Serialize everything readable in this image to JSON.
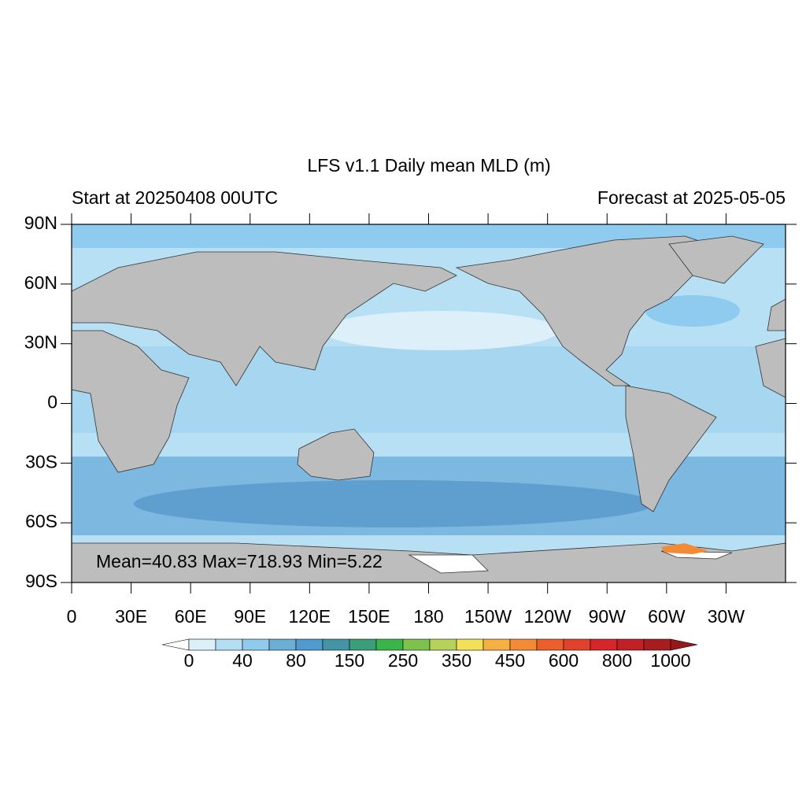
{
  "chart_data": {
    "type": "map",
    "title": "LFS v1.1 Daily mean MLD (m)",
    "subtitle_left": "Start at 20250408 00UTC",
    "subtitle_right": "Forecast at 2025-05-05",
    "annotation": "Mean=40.83  Max=718.93  Min=5.22",
    "xlim": [
      0,
      360
    ],
    "xticks": [
      0,
      {
        "value": 30,
        "label": "30E"
      },
      {
        "value": 60,
        "label": "60E"
      },
      {
        "value": 90,
        "label": "90E"
      },
      {
        "value": 120,
        "label": "120E"
      },
      {
        "value": 150,
        "label": "150E"
      },
      {
        "value": 180,
        "label": "180"
      },
      {
        "value": 210,
        "label": "150W"
      },
      {
        "value": 240,
        "label": "120W"
      },
      {
        "value": 270,
        "label": "90W"
      },
      {
        "value": 300,
        "label": "60W"
      },
      {
        "value": 330,
        "label": "30W"
      }
    ],
    "ylim": [
      -90,
      90
    ],
    "yticks": [
      {
        "value": 90,
        "label": "90N"
      },
      {
        "value": 60,
        "label": "60N"
      },
      {
        "value": 30,
        "label": "30N"
      },
      0,
      {
        "value": -30,
        "label": "30S"
      },
      {
        "value": -60,
        "label": "60S"
      },
      {
        "value": -90,
        "label": "90S"
      }
    ],
    "colorbar": {
      "ticks": [
        0,
        40,
        80,
        150,
        250,
        350,
        450,
        600,
        800,
        1000
      ],
      "colors": [
        "#ddf0fa",
        "#b3dff3",
        "#8fcaef",
        "#6baed6",
        "#4f9bd0",
        "#4494a8",
        "#3a9e79",
        "#3ab54a",
        "#7ec24e",
        "#b7d25a",
        "#f2e05a",
        "#f5b141",
        "#f38b36",
        "#ec5f2b",
        "#e2412a",
        "#d72629",
        "#c21f27",
        "#a81d20"
      ],
      "under_color": "#ffffff",
      "over_color": "#99161b"
    }
  }
}
